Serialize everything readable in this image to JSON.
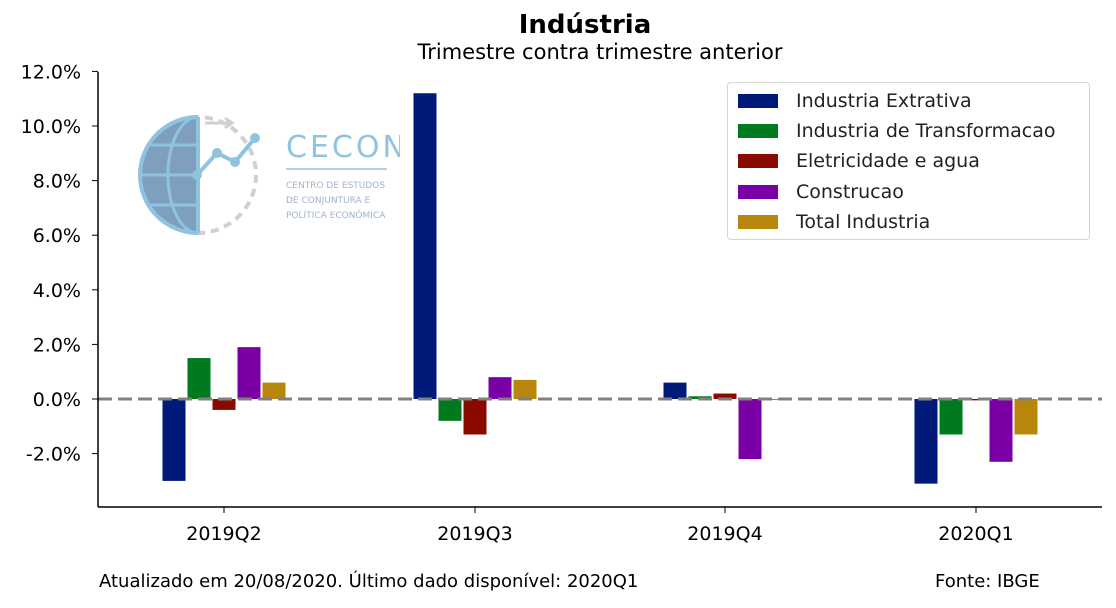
{
  "header": {
    "title": "Indústria",
    "subtitle": "Trimestre contra trimestre anterior"
  },
  "footer": {
    "updated": "Atualizado em 20/08/2020. Último dado disponível: 2020Q1",
    "source": "Fonte: IBGE"
  },
  "logo": {
    "name": "CECON",
    "line1": "CENTRO DE ESTUDOS",
    "line2": "DE CONJUNTURA E",
    "line3": "POLÍTICA ECONÔMICA"
  },
  "chart_data": {
    "type": "bar",
    "title": "Indústria",
    "subtitle": "Trimestre contra trimestre anterior",
    "categories": [
      "2019Q2",
      "2019Q3",
      "2019Q4",
      "2020Q1"
    ],
    "yticks": [
      "12.0%",
      "10.0%",
      "8.0%",
      "6.0%",
      "4.0%",
      "2.0%",
      "0.0%",
      "-2.0%"
    ],
    "ylim": [
      -4.0,
      12.0
    ],
    "reference_line": 0.0,
    "legend_position": "top-right",
    "series": [
      {
        "name": "Industria Extrativa",
        "color": "#001a7a",
        "values": [
          -3.0,
          11.2,
          0.6,
          -3.1
        ]
      },
      {
        "name": "Industria de Transformacao",
        "color": "#007a1f",
        "values": [
          1.5,
          -0.8,
          0.1,
          -1.3
        ]
      },
      {
        "name": "Eletricidade e agua",
        "color": "#8a0a00",
        "values": [
          -0.4,
          -1.3,
          0.2,
          -0.05
        ]
      },
      {
        "name": "Construcao",
        "color": "#7a00a6",
        "values": [
          1.9,
          0.8,
          -2.2,
          -2.3
        ]
      },
      {
        "name": "Total Industria",
        "color": "#b8860b",
        "values": [
          0.6,
          0.7,
          0.0,
          -1.3
        ]
      }
    ]
  }
}
